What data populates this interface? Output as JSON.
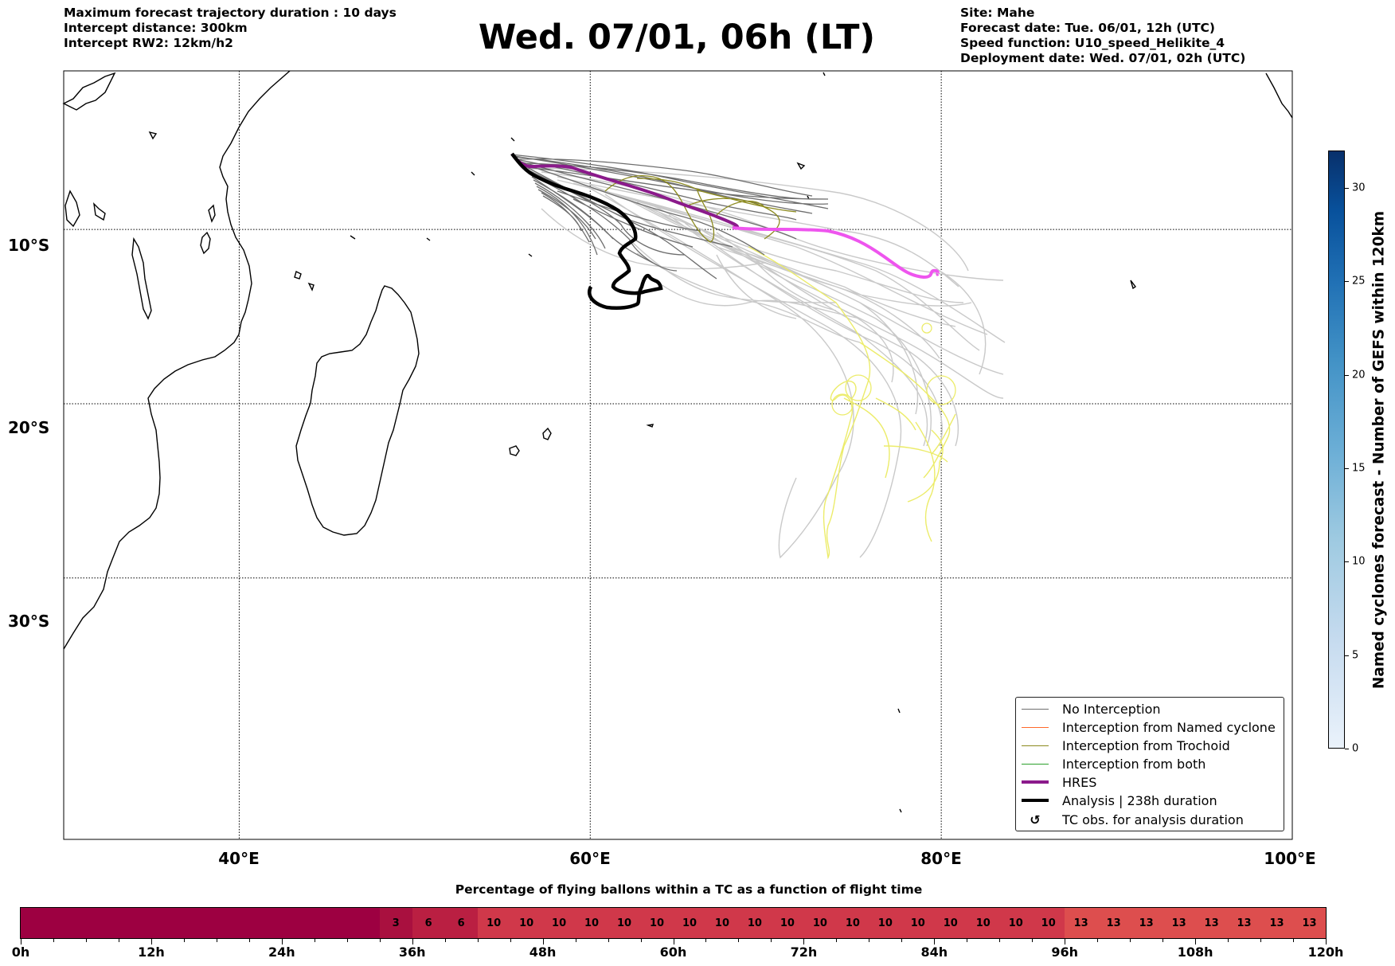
{
  "header": {
    "left": [
      "Maximum forecast trajectory duration : 10 days",
      "Intercept distance: 300km",
      "Intercept RW2: 12km/h2"
    ],
    "right": [
      "Site: Mahe",
      "Forecast date: Tue. 06/01, 12h (UTC)",
      "Speed function: U10_speed_Helikite_4",
      "Deployment date: Wed. 07/01, 02h (UTC)"
    ],
    "title": "Wed. 07/01, 06h (LT)"
  },
  "map": {
    "lon_range": [
      30,
      100
    ],
    "lat_range": [
      -45,
      -0.9
    ],
    "lat_ticks": [
      {
        "value": -10,
        "label": "10°S"
      },
      {
        "value": -20,
        "label": "20°S"
      },
      {
        "value": -30,
        "label": "30°S"
      }
    ],
    "lon_ticks": [
      {
        "value": 40,
        "label": "40°E"
      },
      {
        "value": 60,
        "label": "60°E"
      },
      {
        "value": 80,
        "label": "80°E"
      },
      {
        "value": 100,
        "label": "100°E"
      }
    ],
    "gridlines": "dotted"
  },
  "legend": {
    "items": [
      {
        "label": "No Interception",
        "color": "#6e6e6e"
      },
      {
        "label": "Interception from Named cyclone",
        "color": "#ff6a2b"
      },
      {
        "label": "Interception from Trochoid",
        "color": "#8c8a1e"
      },
      {
        "label": "Interception from both",
        "color": "#2ca02c"
      },
      {
        "label": "HRES",
        "color": "#8b1a8b"
      },
      {
        "label": "Analysis | 238h duration",
        "color": "#000000"
      },
      {
        "label": "TC obs. for analysis duration",
        "icon": "cyclone-icon",
        "glyph": "↺"
      }
    ]
  },
  "colorbar": {
    "title": "Named cyclones forecast - Number of GEFS within 120km",
    "min": 0,
    "max": 32,
    "ticks": [
      {
        "value": 0,
        "label": "0"
      },
      {
        "value": 5,
        "label": "5"
      },
      {
        "value": 10,
        "label": "10"
      },
      {
        "value": 15,
        "label": "15"
      },
      {
        "value": 20,
        "label": "20"
      },
      {
        "value": 25,
        "label": "25"
      },
      {
        "value": 30,
        "label": "30"
      }
    ]
  },
  "timebar": {
    "title": "Percentage of flying ballons within a TC as a function of flight time",
    "max_hours": 120,
    "step_hours": 3,
    "segments": [
      {
        "from": 0,
        "to": 33,
        "value": "",
        "color": "#9d0041"
      },
      {
        "from": 33,
        "to": 36,
        "value": "3",
        "color": "#a9103f"
      },
      {
        "from": 36,
        "to": 42,
        "value": "6",
        "color": "#ba1f42",
        "repeat_label": true
      },
      {
        "from": 42,
        "to": 96,
        "value": "10",
        "color": "#d0384a",
        "repeat_label": true
      },
      {
        "from": 96,
        "to": 120,
        "value": "13",
        "color": "#dd4e4e",
        "repeat_label": true
      }
    ],
    "ticks": [
      {
        "value": 0,
        "label": "0h"
      },
      {
        "value": 12,
        "label": "12h"
      },
      {
        "value": 24,
        "label": "24h"
      },
      {
        "value": 36,
        "label": "36h"
      },
      {
        "value": 48,
        "label": "48h"
      },
      {
        "value": 60,
        "label": "60h"
      },
      {
        "value": 72,
        "label": "72h"
      },
      {
        "value": 84,
        "label": "84h"
      },
      {
        "value": 96,
        "label": "96h"
      },
      {
        "value": 108,
        "label": "108h"
      },
      {
        "value": 120,
        "label": "120h"
      }
    ]
  },
  "chart_data": {
    "type": "line",
    "xlabel": "",
    "ylabel": "",
    "xlim": [
      30,
      100
    ],
    "ylim": [
      -45,
      -0.9
    ],
    "series": [
      {
        "name": "HRES",
        "color": "#8b1a8b",
        "points": [
          [
            55.6,
            -4.8
          ],
          [
            56.5,
            -5.4
          ],
          [
            58,
            -5.5
          ],
          [
            60,
            -6.0
          ],
          [
            62,
            -6.8
          ],
          [
            64,
            -7.5
          ],
          [
            66,
            -8.4
          ],
          [
            68,
            -9.0
          ],
          [
            70,
            -9.0
          ],
          [
            72,
            -9.2
          ],
          [
            74,
            -9.6
          ],
          [
            76,
            -10.4
          ],
          [
            77.5,
            -11.3
          ],
          [
            78.6,
            -11.6
          ],
          [
            79.3,
            -11.3
          ],
          [
            79.8,
            -11.4
          ]
        ]
      },
      {
        "name": "Analysis | 238h duration",
        "color": "#000000",
        "points": [
          [
            55.6,
            -4.8
          ],
          [
            56.5,
            -5.8
          ],
          [
            58,
            -6.6
          ],
          [
            60,
            -7.4
          ],
          [
            61.5,
            -8.2
          ],
          [
            62.6,
            -9.2
          ],
          [
            62.4,
            -10.0
          ],
          [
            61.8,
            -10.6
          ],
          [
            62.3,
            -11.5
          ],
          [
            61.8,
            -12.4
          ],
          [
            60.1,
            -11.9
          ],
          [
            60.6,
            -12.9
          ],
          [
            62.2,
            -13.3
          ],
          [
            63.8,
            -12.9
          ],
          [
            64.0,
            -12.4
          ],
          [
            63.2,
            -11.9
          ],
          [
            62.7,
            -12.5
          ]
        ]
      }
    ]
  }
}
